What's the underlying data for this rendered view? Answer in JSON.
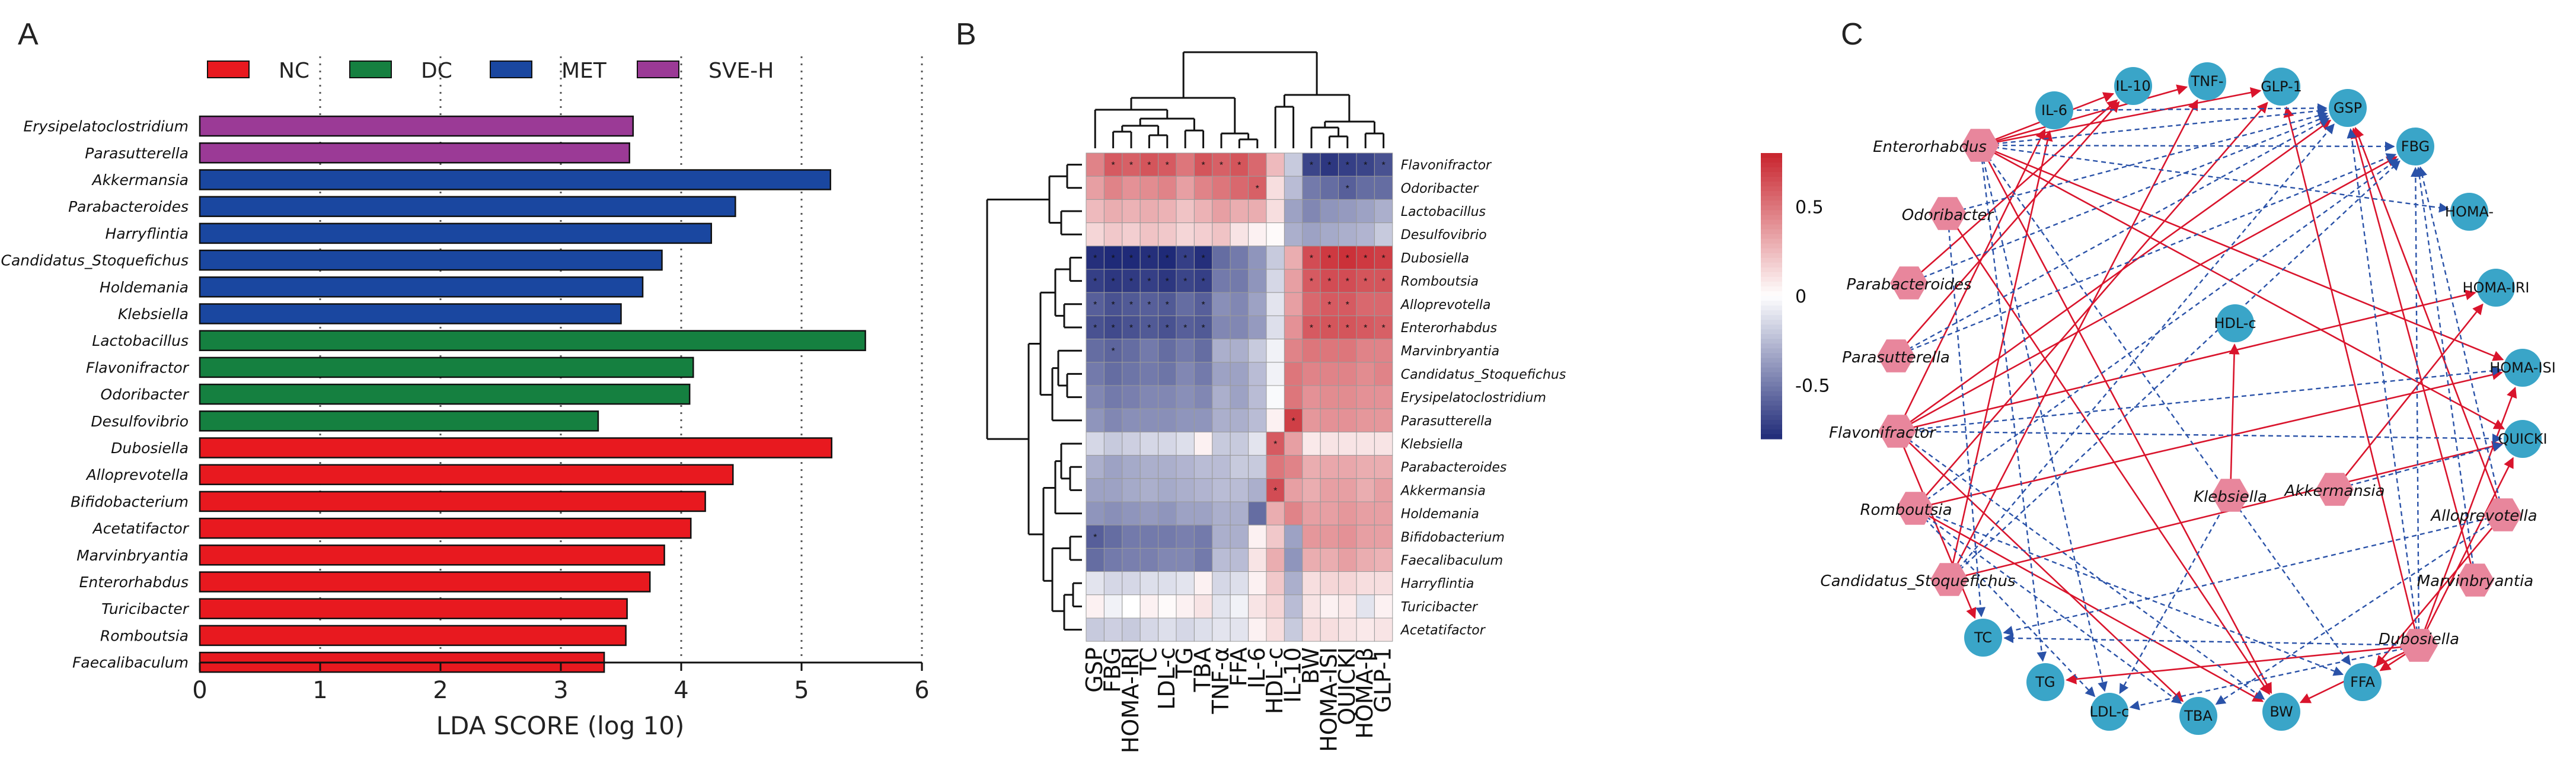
{
  "panels": {
    "a": "A",
    "b": "B",
    "c": "C"
  },
  "colors": {
    "NC": "#e8191f",
    "DC": "#158040",
    "MET": "#1a47a0",
    "SVE-H": "#9b3a96",
    "node_blue": "#3aa5c8",
    "node_pink": "#e8869c",
    "pos": "#d9142c",
    "neg": "#2a52a8"
  },
  "chart_data": [
    {
      "type": "bar",
      "orientation": "horizontal",
      "xlabel": "LDA SCORE (log 10)",
      "xlim": [
        0,
        6
      ],
      "xticks": [
        "0",
        "1",
        "2",
        "3",
        "4",
        "5",
        "6"
      ],
      "legend": {
        "placement": "top",
        "entries": [
          "NC",
          "DC",
          "MET",
          "SVE-H"
        ]
      },
      "grid": "vertical dotted",
      "bars": [
        {
          "taxon": "Erysipelatoclostridium",
          "group": "SVE-H",
          "value": 3.6
        },
        {
          "taxon": "Parasutterella",
          "group": "SVE-H",
          "value": 3.57
        },
        {
          "taxon": "Akkermansia",
          "group": "MET",
          "value": 5.24
        },
        {
          "taxon": "Parabacteroides",
          "group": "MET",
          "value": 4.45
        },
        {
          "taxon": "Harryflintia",
          "group": "MET",
          "value": 4.25
        },
        {
          "taxon": "Candidatus_Stoquefichus",
          "group": "MET",
          "value": 3.84
        },
        {
          "taxon": "Holdemania",
          "group": "MET",
          "value": 3.68
        },
        {
          "taxon": "Klebsiella",
          "group": "MET",
          "value": 3.5
        },
        {
          "taxon": "Lactobacillus",
          "group": "DC",
          "value": 5.53
        },
        {
          "taxon": "Flavonifractor",
          "group": "DC",
          "value": 4.1
        },
        {
          "taxon": "Odoribacter",
          "group": "DC",
          "value": 4.07
        },
        {
          "taxon": "Desulfovibrio",
          "group": "DC",
          "value": 3.31
        },
        {
          "taxon": "Dubosiella",
          "group": "NC",
          "value": 5.25
        },
        {
          "taxon": "Alloprevotella",
          "group": "NC",
          "value": 4.43
        },
        {
          "taxon": "Bifidobacterium",
          "group": "NC",
          "value": 4.2
        },
        {
          "taxon": "Acetatifactor",
          "group": "NC",
          "value": 4.08
        },
        {
          "taxon": "Marvinbryantia",
          "group": "NC",
          "value": 3.86
        },
        {
          "taxon": "Enterorhabdus",
          "group": "NC",
          "value": 3.74
        },
        {
          "taxon": "Turicibacter",
          "group": "NC",
          "value": 3.55
        },
        {
          "taxon": "Romboutsia",
          "group": "NC",
          "value": 3.54
        },
        {
          "taxon": "Faecalibaculum",
          "group": "NC",
          "value": 3.36
        }
      ]
    },
    {
      "type": "heatmap",
      "rows": [
        "Flavonifractor",
        "Odoribacter",
        "Lactobacillus",
        "Desulfovibrio",
        "Dubosiella",
        "Romboutsia",
        "Alloprevotella",
        "Enterorhabdus",
        "Marvinbryantia",
        "Candidatus_Stoquefichus",
        "Erysipelatoclostridium",
        "Parasutterella",
        "Klebsiella",
        "Parabacteroides",
        "Akkermansia",
        "Holdemania",
        "Bifidobacterium",
        "Faecalibaculum",
        "Harryflintia",
        "Turicibacter",
        "Acetatifactor"
      ],
      "columns": [
        "GSP",
        "FBG",
        "HOMA-IRI",
        "TC",
        "LDL-c",
        "TG",
        "TBA",
        "TNF-α",
        "FFA",
        "IL-6",
        "HDL-c",
        "IL-10",
        "BW",
        "HOMA-ISI",
        "QUICKI",
        "HOMA-β",
        "GLP-1"
      ],
      "colorbar": {
        "ticks": [
          0.5,
          0,
          -0.5
        ],
        "tick_labels": [
          "0.5",
          "0",
          "-0.5"
        ],
        "range": [
          -0.8,
          0.8
        ],
        "low": "#1f2a78",
        "mid": "#ffffff",
        "high": "#c8232c"
      },
      "values": [
        [
          0.45,
          0.6,
          0.58,
          0.62,
          0.6,
          0.5,
          0.62,
          0.58,
          0.62,
          0.55,
          0.25,
          -0.2,
          -0.7,
          -0.75,
          -0.72,
          -0.7,
          -0.65
        ],
        [
          0.35,
          0.45,
          0.4,
          0.42,
          0.45,
          0.35,
          0.45,
          0.5,
          0.55,
          0.58,
          0.12,
          -0.25,
          -0.5,
          -0.55,
          -0.6,
          -0.55,
          -0.55
        ],
        [
          0.25,
          0.3,
          0.28,
          0.3,
          0.28,
          0.22,
          0.28,
          0.35,
          0.3,
          0.3,
          0.12,
          -0.35,
          -0.45,
          -0.4,
          -0.38,
          -0.35,
          -0.3
        ],
        [
          0.15,
          0.2,
          0.18,
          0.22,
          0.2,
          0.15,
          0.18,
          0.22,
          0.1,
          0.05,
          0.02,
          -0.3,
          -0.35,
          -0.32,
          -0.3,
          -0.28,
          -0.2
        ],
        [
          -0.78,
          -0.8,
          -0.8,
          -0.78,
          -0.8,
          -0.72,
          -0.78,
          -0.55,
          -0.5,
          -0.4,
          -0.2,
          0.3,
          0.65,
          0.72,
          0.75,
          0.72,
          0.7
        ],
        [
          -0.72,
          -0.75,
          -0.74,
          -0.72,
          -0.75,
          -0.7,
          -0.72,
          -0.5,
          -0.5,
          -0.4,
          -0.15,
          0.35,
          0.6,
          0.65,
          0.65,
          0.62,
          0.62
        ],
        [
          -0.6,
          -0.65,
          -0.62,
          -0.6,
          -0.62,
          -0.55,
          -0.6,
          -0.42,
          -0.45,
          -0.35,
          -0.1,
          0.35,
          0.55,
          0.6,
          0.6,
          0.55,
          0.55
        ],
        [
          -0.65,
          -0.68,
          -0.65,
          -0.62,
          -0.65,
          -0.6,
          -0.62,
          -0.45,
          -0.45,
          -0.38,
          -0.12,
          0.4,
          0.6,
          0.62,
          0.62,
          0.6,
          0.58
        ],
        [
          -0.55,
          -0.58,
          -0.55,
          -0.5,
          -0.55,
          -0.5,
          -0.55,
          -0.3,
          -0.3,
          -0.2,
          -0.05,
          0.45,
          0.5,
          0.5,
          0.5,
          0.45,
          0.45
        ],
        [
          -0.5,
          -0.55,
          -0.52,
          -0.5,
          -0.52,
          -0.45,
          -0.5,
          -0.35,
          -0.35,
          -0.25,
          -0.05,
          0.5,
          0.45,
          0.45,
          0.45,
          0.42,
          0.45
        ],
        [
          -0.45,
          -0.5,
          -0.48,
          -0.45,
          -0.45,
          -0.42,
          -0.45,
          -0.3,
          -0.35,
          -0.25,
          -0.02,
          0.5,
          0.4,
          0.42,
          0.42,
          0.4,
          0.4
        ],
        [
          -0.4,
          -0.45,
          -0.42,
          -0.42,
          -0.42,
          -0.4,
          -0.4,
          -0.3,
          -0.3,
          -0.25,
          0.05,
          0.7,
          0.38,
          0.4,
          0.4,
          0.38,
          0.38
        ],
        [
          -0.15,
          -0.2,
          -0.18,
          -0.15,
          -0.15,
          -0.12,
          0.05,
          -0.2,
          -0.2,
          -0.1,
          0.6,
          0.35,
          0.08,
          0.1,
          0.1,
          0.1,
          0.1
        ],
        [
          -0.3,
          -0.35,
          -0.32,
          -0.3,
          -0.3,
          -0.28,
          -0.25,
          -0.25,
          -0.2,
          -0.2,
          0.5,
          0.45,
          0.3,
          0.32,
          0.32,
          0.3,
          0.3
        ],
        [
          -0.35,
          -0.35,
          -0.32,
          -0.3,
          -0.32,
          -0.3,
          -0.28,
          -0.25,
          -0.25,
          -0.3,
          0.65,
          0.35,
          0.3,
          0.35,
          0.35,
          0.3,
          0.35
        ],
        [
          -0.4,
          -0.42,
          -0.4,
          -0.38,
          -0.4,
          -0.35,
          -0.35,
          -0.3,
          -0.3,
          -0.55,
          0.3,
          0.45,
          0.35,
          0.35,
          0.38,
          0.35,
          0.35
        ],
        [
          -0.6,
          -0.55,
          -0.5,
          -0.5,
          -0.5,
          -0.48,
          -0.5,
          -0.3,
          -0.3,
          0.05,
          0.2,
          -0.35,
          0.38,
          0.38,
          0.4,
          0.35,
          0.35
        ],
        [
          -0.55,
          -0.5,
          -0.48,
          -0.48,
          -0.45,
          -0.45,
          -0.5,
          -0.25,
          -0.25,
          0.1,
          0.3,
          -0.4,
          0.3,
          0.3,
          0.35,
          0.3,
          0.28
        ],
        [
          -0.1,
          -0.15,
          -0.15,
          -0.12,
          -0.12,
          -0.1,
          0.05,
          -0.15,
          -0.12,
          0.05,
          0.2,
          -0.3,
          0.12,
          0.15,
          0.15,
          0.12,
          0.12
        ],
        [
          0.05,
          -0.05,
          0.0,
          0.05,
          0.02,
          0.05,
          0.1,
          -0.1,
          -0.05,
          0.1,
          0.15,
          -0.25,
          0.1,
          0.05,
          0.08,
          -0.1,
          0.05
        ],
        [
          -0.2,
          -0.18,
          -0.2,
          -0.15,
          -0.12,
          -0.15,
          -0.12,
          -0.1,
          -0.1,
          0.05,
          0.12,
          -0.2,
          0.12,
          0.12,
          0.1,
          0.08,
          0.1
        ]
      ],
      "star_rows": [
        0,
        1,
        4,
        5,
        6,
        7
      ]
    },
    {
      "type": "network",
      "blue_nodes": [
        "IL-6",
        "IL-10",
        "TNF-",
        "GLP-1",
        "GSP",
        "FBG",
        "HOMA-",
        "HOMA-IRI",
        "HOMA-ISI",
        "QUICKI",
        "FFA",
        "BW",
        "TBA",
        "LDL-c",
        "TG",
        "TC",
        "HDL-c"
      ],
      "pink_nodes": [
        "Enterorhabdus",
        "Odoribacter",
        "Parabacteroides",
        "Parasutterella",
        "Flavonifractor",
        "Romboutsia",
        "Candidatus_Stoquefichus",
        "Dubosiella",
        "Marvinbryantia",
        "Alloprevotella",
        "Klebsiella",
        "Akkermansia"
      ],
      "edge_styles": {
        "positive": "solid red",
        "negative": "dashed blue"
      }
    }
  ]
}
